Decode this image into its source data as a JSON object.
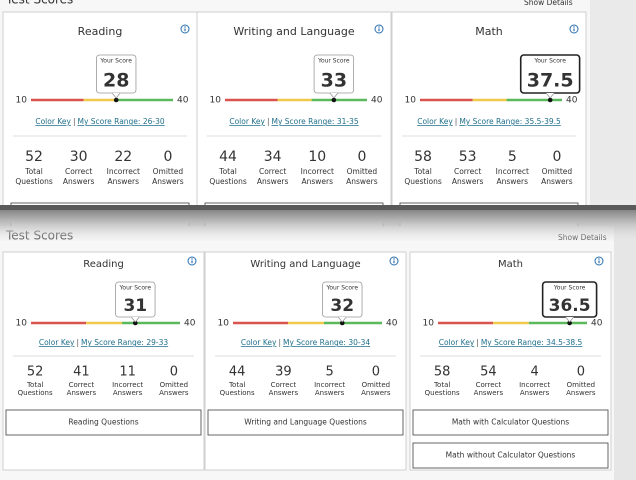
{
  "panels": [
    {
      "title": "Test Scores",
      "link": "Show Details",
      "cards": [
        {
          "subject": "Reading",
          "score_label": "Your Score",
          "score": 28,
          "scale": [
            10,
            40
          ],
          "key": "Color Key",
          "divider": "|",
          "range": "My Score Range: 26-30",
          "stats": [
            {
              "value": 52,
              "label": [
                "Total",
                "Questions"
              ]
            },
            {
              "value": 30,
              "label": [
                "Correct",
                "Answers"
              ]
            },
            {
              "value": 22,
              "label": [
                "Incorrect",
                "Answers"
              ]
            },
            {
              "value": 0,
              "label": [
                "Omitted",
                "Answers"
              ]
            }
          ]
        },
        {
          "subject": "Writing and Language",
          "score_label": "Your Score",
          "score": 33,
          "scale": [
            10,
            40
          ],
          "key": "Color Key",
          "divider": "|",
          "range": "My Score Range: 31-35",
          "stats": [
            {
              "value": 44,
              "label": [
                "Total",
                "Questions"
              ]
            },
            {
              "value": 34,
              "label": [
                "Correct",
                "Answers"
              ]
            },
            {
              "value": 10,
              "label": [
                "Incorrect",
                "Answers"
              ]
            },
            {
              "value": 0,
              "label": [
                "Omitted",
                "Answers"
              ]
            }
          ]
        },
        {
          "subject": "Math",
          "score_label": "Your Score",
          "score": 37.5,
          "scale": [
            10,
            40
          ],
          "key": "Color Key",
          "divider": "|",
          "range": "My Score Range: 35.5-39.5",
          "stats": [
            {
              "value": 58,
              "label": [
                "Total",
                "Questions"
              ]
            },
            {
              "value": 53,
              "label": [
                "Correct",
                "Answers"
              ]
            },
            {
              "value": 5,
              "label": [
                "Incorrect",
                "Answers"
              ]
            },
            {
              "value": 0,
              "label": [
                "Omitted",
                "Answers"
              ]
            }
          ]
        }
      ]
    },
    {
      "title": "Test Scores",
      "link": "Show Details",
      "cards": [
        {
          "subject": "Reading",
          "score_label": "Your Score",
          "score": 31,
          "scale": [
            10,
            40
          ],
          "key": "Color Key",
          "divider": "|",
          "range": "My Score Range: 29-33",
          "stats": [
            {
              "value": 52,
              "label": [
                "Total",
                "Questions"
              ]
            },
            {
              "value": 41,
              "label": [
                "Correct",
                "Answers"
              ]
            },
            {
              "value": 11,
              "label": [
                "Incorrect",
                "Answers"
              ]
            },
            {
              "value": 0,
              "label": [
                "Omitted",
                "Answers"
              ]
            }
          ],
          "buttons": [
            "Reading Questions"
          ]
        },
        {
          "subject": "Writing and Language",
          "score_label": "Your Score",
          "score": 32,
          "scale": [
            10,
            40
          ],
          "key": "Color Key",
          "divider": "|",
          "range": "My Score Range: 30-34",
          "stats": [
            {
              "value": 44,
              "label": [
                "Total",
                "Questions"
              ]
            },
            {
              "value": 39,
              "label": [
                "Correct",
                "Answers"
              ]
            },
            {
              "value": 5,
              "label": [
                "Incorrect",
                "Answers"
              ]
            },
            {
              "value": 0,
              "label": [
                "Omitted",
                "Answers"
              ]
            }
          ],
          "buttons": [
            "Writing and Language Questions"
          ]
        },
        {
          "subject": "Math",
          "score_label": "Your Score",
          "score": 36.5,
          "scale": [
            10,
            40
          ],
          "key": "Color Key",
          "divider": "|",
          "range": "My Score Range: 34.5-38.5",
          "stats": [
            {
              "value": 58,
              "label": [
                "Total",
                "Questions"
              ]
            },
            {
              "value": 54,
              "label": [
                "Correct",
                "Answers"
              ]
            },
            {
              "value": 4,
              "label": [
                "Incorrect",
                "Answers"
              ]
            },
            {
              "value": 0,
              "label": [
                "Omitted",
                "Answers"
              ]
            }
          ],
          "buttons": [
            "Math with Calculator Questions",
            "Math without Calculator Questions"
          ]
        }
      ]
    }
  ]
}
